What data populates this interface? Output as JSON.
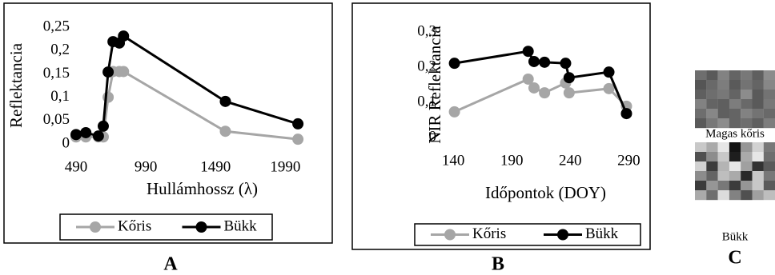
{
  "chart_data": [
    {
      "type": "line",
      "x_label": "Hullámhossz (λ)",
      "y_label": "Reflektancia",
      "x": [
        490,
        560,
        650,
        685,
        720,
        755,
        800,
        830,
        1560,
        2080
      ],
      "xlim": [
        490,
        2240
      ],
      "xticks": [
        490,
        990,
        1490,
        1990
      ],
      "ylim": [
        0,
        0.25
      ],
      "yticks": [
        0,
        {
          "value": 0.05,
          "label": "0,05"
        },
        {
          "value": 0.1,
          "label": "0,1"
        },
        {
          "value": 0.15,
          "label": "0,15"
        },
        {
          "value": 0.2,
          "label": "0,2"
        },
        {
          "value": 0.25,
          "label": "0,25"
        }
      ],
      "grid": false,
      "legend": "bottom",
      "series": [
        {
          "name": "Kőris",
          "color": "#a6a6a6",
          "values": [
            0.015,
            0.015,
            0.015,
            0.015,
            0.1,
            0.155,
            0.155,
            0.155,
            0.027,
            0.01
          ]
        },
        {
          "name": "Bükk",
          "color": "#000000",
          "values": [
            0.02,
            0.024,
            0.017,
            0.038,
            0.154,
            0.219,
            0.216,
            0.231,
            0.091,
            0.043
          ]
        }
      ]
    },
    {
      "type": "line",
      "x_label": "Időpontok (DOY)",
      "y_label": "NIR Reflektancia",
      "x": [
        141,
        204,
        209,
        218,
        236,
        239,
        273,
        288
      ],
      "xlim": [
        131,
        300
      ],
      "xticks": [
        140,
        190,
        240,
        290
      ],
      "ylim": [
        0,
        0.3
      ],
      "yticks": [
        0,
        {
          "value": 0.1,
          "label": "0,1"
        },
        {
          "value": 0.2,
          "label": "0,2"
        },
        {
          "value": 0.3,
          "label": "0,3"
        }
      ],
      "grid": false,
      "legend": "bottom",
      "series": [
        {
          "name": "Kőris",
          "color": "#a6a6a6",
          "values": [
            0.073,
            0.166,
            0.141,
            0.127,
            0.155,
            0.127,
            0.139,
            0.089
          ]
        },
        {
          "name": "Bükk",
          "color": "#000000",
          "values": [
            0.211,
            0.245,
            0.216,
            0.214,
            0.211,
            0.17,
            0.186,
            0.068
          ]
        }
      ]
    }
  ],
  "panel_labels": [
    "A",
    "B",
    "C"
  ],
  "image_labels": [
    "Magas kőris",
    "Bükk"
  ]
}
